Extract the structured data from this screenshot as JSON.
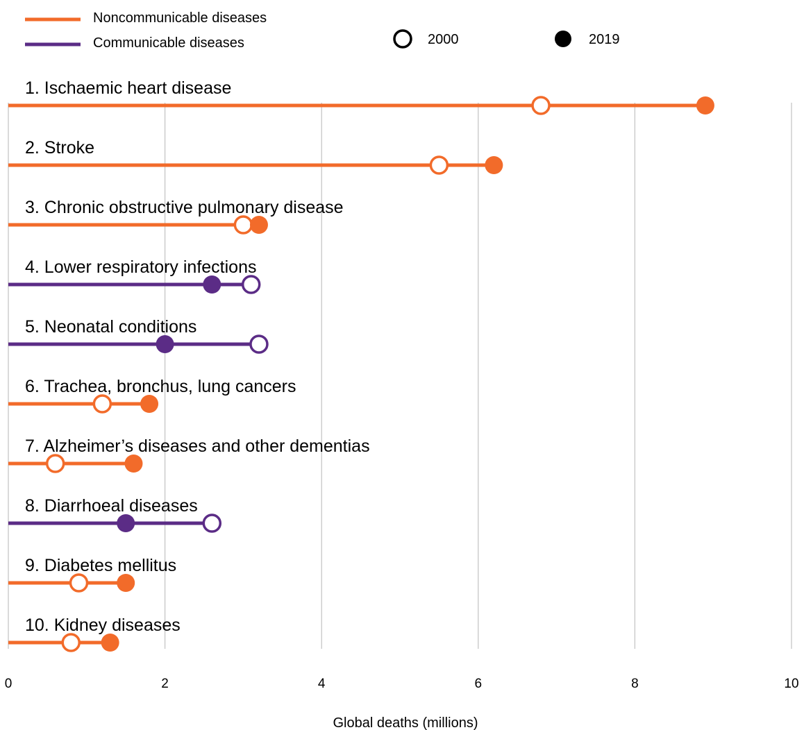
{
  "chart_data": {
    "type": "dumbbell",
    "xlabel": "Global deaths (millions)",
    "xlim": [
      0,
      10
    ],
    "xticks": [
      "0",
      "2",
      "4",
      "6",
      "8",
      "10"
    ],
    "grid": true,
    "legend": {
      "placement": "top-left",
      "groups": [
        {
          "name": "Noncommunicable diseases",
          "color": "#F26B2A"
        },
        {
          "name": "Communicable diseases",
          "color": "#5B2C86"
        }
      ],
      "markers": [
        {
          "name": "2000",
          "style": "open-circle"
        },
        {
          "name": "2019",
          "style": "filled-circle"
        }
      ]
    },
    "series": [
      {
        "label": "1.   Ischaemic heart disease",
        "group": "Noncommunicable diseases",
        "v2000": 6.8,
        "v2019": 8.9
      },
      {
        "label": "2.   Stroke",
        "group": "Noncommunicable diseases",
        "v2000": 5.5,
        "v2019": 6.2
      },
      {
        "label": "3.   Chronic obstructive pulmonary disease",
        "group": "Noncommunicable diseases",
        "v2000": 3.0,
        "v2019": 3.2
      },
      {
        "label": "4.   Lower respiratory infections",
        "group": "Communicable diseases",
        "v2000": 3.1,
        "v2019": 2.6
      },
      {
        "label": "5.   Neonatal conditions",
        "group": "Communicable diseases",
        "v2000": 3.2,
        "v2019": 2.0
      },
      {
        "label": "6.   Trachea, bronchus, lung cancers",
        "group": "Noncommunicable diseases",
        "v2000": 1.2,
        "v2019": 1.8
      },
      {
        "label": "7.   Alzheimer’s diseases and other dementias",
        "group": "Noncommunicable diseases",
        "v2000": 0.6,
        "v2019": 1.6
      },
      {
        "label": "8.   Diarrhoeal diseases",
        "group": "Communicable diseases",
        "v2000": 2.6,
        "v2019": 1.5
      },
      {
        "label": "9.   Diabetes mellitus",
        "group": "Noncommunicable diseases",
        "v2000": 0.9,
        "v2019": 1.5
      },
      {
        "label": "10.  Kidney diseases",
        "group": "Noncommunicable diseases",
        "v2000": 0.8,
        "v2019": 1.3
      }
    ]
  }
}
